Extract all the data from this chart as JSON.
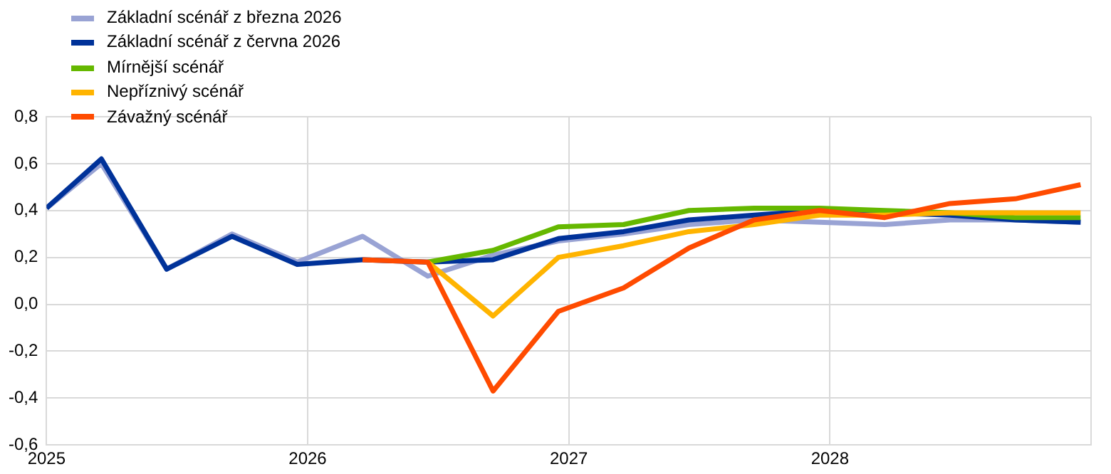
{
  "chart_data": {
    "type": "line",
    "legend": "top left",
    "grid": true,
    "marker": "none",
    "line_style": "solid",
    "xlim": [
      2025,
      2029
    ],
    "xticks": [
      2025,
      2026,
      2027,
      2028,
      {
        "value": 2029,
        "label": null
      }
    ],
    "ylim": [
      -0.6,
      0.8
    ],
    "yticks": [
      {
        "value": -0.6,
        "label": "-0,6"
      },
      {
        "value": -0.4,
        "label": "-0,4"
      },
      {
        "value": -0.2,
        "label": "-0,2"
      },
      {
        "value": 0,
        "label": "0,0"
      },
      {
        "value": 0.2,
        "label": "0,2"
      },
      {
        "value": 0.4,
        "label": "0,4"
      },
      {
        "value": 0.6,
        "label": "0,6"
      },
      {
        "value": 0.8,
        "label": "0,8"
      }
    ],
    "series": [
      {
        "name": "Základní scénář z března 2026",
        "color": "#99a3d4",
        "x": [
          2025,
          2025.21,
          2025.46,
          2025.71,
          2025.96,
          2026.21,
          2026.46,
          2026.71,
          2026.96,
          2027.21,
          2027.46,
          2027.71,
          2027.96,
          2028.21,
          2028.46,
          2028.71,
          2028.96
        ],
        "values": [
          0.41,
          0.6,
          0.15,
          0.3,
          0.18,
          0.29,
          0.12,
          0.21,
          0.27,
          0.3,
          0.34,
          0.36,
          0.35,
          0.34,
          0.36,
          0.36,
          0.35
        ]
      },
      {
        "name": "Základní scénář z června 2026",
        "color": "#003299",
        "x": [
          2025,
          2025.21,
          2025.46,
          2025.71,
          2025.96,
          2026.21,
          2026.46,
          2026.71,
          2026.96,
          2027.21,
          2027.46,
          2027.71,
          2027.96,
          2028.21,
          2028.46,
          2028.71,
          2028.96
        ],
        "values": [
          0.41,
          0.62,
          0.15,
          0.29,
          0.17,
          0.19,
          0.18,
          0.19,
          0.28,
          0.31,
          0.36,
          0.38,
          0.4,
          0.39,
          0.38,
          0.36,
          0.35
        ]
      },
      {
        "name": "Mírnější scénář",
        "color": "#65b800",
        "x": [
          2026.46,
          2026.71,
          2026.96,
          2027.21,
          2027.46,
          2027.71,
          2027.96,
          2028.21,
          2028.46,
          2028.71,
          2028.96
        ],
        "values": [
          0.18,
          0.23,
          0.33,
          0.34,
          0.4,
          0.41,
          0.41,
          0.4,
          0.39,
          0.37,
          0.37
        ]
      },
      {
        "name": "Nepříznivý scénář",
        "color": "#ffb400",
        "x": [
          2026.46,
          2026.71,
          2026.96,
          2027.21,
          2027.46,
          2027.71,
          2027.96,
          2028.21,
          2028.46,
          2028.71,
          2028.96
        ],
        "values": [
          0.18,
          -0.05,
          0.2,
          0.25,
          0.31,
          0.34,
          0.38,
          0.38,
          0.39,
          0.39,
          0.39
        ]
      },
      {
        "name": "Závažný scénář",
        "color": "#ff4b00",
        "x": [
          2026.21,
          2026.46,
          2026.71,
          2026.96,
          2027.21,
          2027.46,
          2027.71,
          2027.96,
          2028.21,
          2028.46,
          2028.71,
          2028.96
        ],
        "values": [
          0.19,
          0.18,
          -0.37,
          -0.03,
          0.07,
          0.24,
          0.36,
          0.4,
          0.37,
          0.43,
          0.45,
          0.51
        ]
      }
    ]
  }
}
